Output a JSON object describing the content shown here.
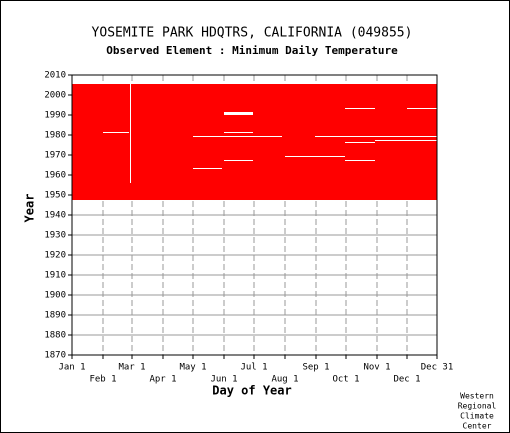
{
  "chart_data": {
    "type": "availability",
    "title": "YOSEMITE PARK HDQTRS, CALIFORNIA   (049855)",
    "subtitle": "Observed Element : Minimum Daily Temperature",
    "xlabel": "Day of Year",
    "ylabel": "Year",
    "credit": [
      "Western",
      "Regional",
      "Climate",
      "Center"
    ],
    "color": "#ff0000",
    "xlim": [
      1,
      366
    ],
    "xticks": [
      {
        "value": 1,
        "label": "Jan 1"
      },
      {
        "value": 32,
        "label": "Feb 1"
      },
      {
        "value": 61,
        "label": "Mar 1"
      },
      {
        "value": 92,
        "label": "Apr 1"
      },
      {
        "value": 122,
        "label": "May 1"
      },
      {
        "value": 153,
        "label": "Jun 1"
      },
      {
        "value": 183,
        "label": "Jul 1"
      },
      {
        "value": 214,
        "label": "Aug 1"
      },
      {
        "value": 245,
        "label": "Sep 1"
      },
      {
        "value": 275,
        "label": "Oct 1"
      },
      {
        "value": 306,
        "label": "Nov 1"
      },
      {
        "value": 336,
        "label": "Dec 1"
      },
      {
        "value": 366,
        "label": "Dec 31"
      }
    ],
    "ylim": [
      1870,
      2010
    ],
    "yticks": [
      1870,
      1880,
      1890,
      1900,
      1910,
      1920,
      1930,
      1940,
      1950,
      1960,
      1970,
      1980,
      1990,
      2000,
      2010
    ],
    "grid": true,
    "data_years": [
      1948,
      2005
    ],
    "gaps": [
      {
        "x": [
          32,
          58
        ],
        "years": [
          1981,
          1981
        ]
      },
      {
        "x": [
          59,
          60
        ],
        "years": [
          1956,
          2005
        ]
      },
      {
        "x": [
          153,
          182
        ],
        "years": [
          1990,
          1991
        ]
      },
      {
        "x": [
          153,
          182
        ],
        "years": [
          1981,
          1981
        ]
      },
      {
        "x": [
          122,
          211
        ],
        "years": [
          1979,
          1979
        ]
      },
      {
        "x": [
          244,
          366
        ],
        "years": [
          1979,
          1979
        ]
      },
      {
        "x": [
          304,
          366
        ],
        "years": [
          1977,
          1977
        ]
      },
      {
        "x": [
          274,
          304
        ],
        "years": [
          1976,
          1976
        ]
      },
      {
        "x": [
          274,
          304
        ],
        "years": [
          1993,
          1993
        ]
      },
      {
        "x": [
          336,
          366
        ],
        "years": [
          1993,
          1993
        ]
      },
      {
        "x": [
          214,
          274
        ],
        "years": [
          1969,
          1969
        ]
      },
      {
        "x": [
          153,
          182
        ],
        "years": [
          1967,
          1967
        ]
      },
      {
        "x": [
          274,
          304
        ],
        "years": [
          1967,
          1967
        ]
      },
      {
        "x": [
          122,
          151
        ],
        "years": [
          1963,
          1963
        ]
      }
    ]
  }
}
